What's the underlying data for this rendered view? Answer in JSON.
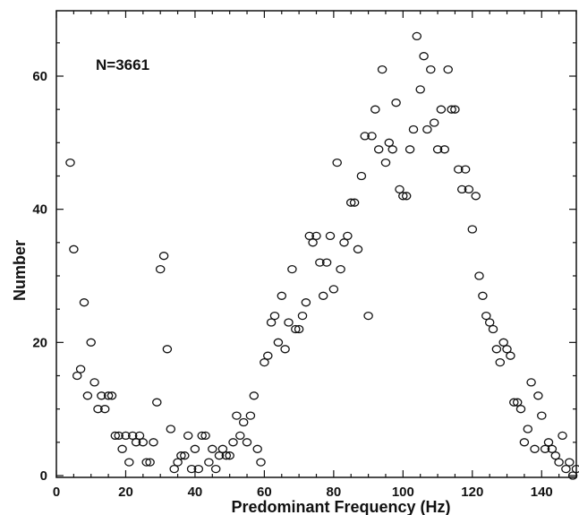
{
  "chart_data": {
    "type": "scatter",
    "title": "",
    "xlabel": "Predominant Frequency (Hz)",
    "ylabel": "Number",
    "annotation": "N=3661",
    "xlim": [
      0,
      150
    ],
    "ylim": [
      0,
      68
    ],
    "x_ticks": [
      "0",
      "20",
      "40",
      "60",
      "80",
      "100",
      "120",
      "140"
    ],
    "y_ticks": [
      "0",
      "20",
      "40",
      "60"
    ],
    "x_tick_values": [
      0,
      20,
      40,
      60,
      80,
      100,
      120,
      140
    ],
    "y_tick_values": [
      0,
      20,
      40,
      60
    ],
    "grid": false,
    "marker": "open-ellipse",
    "points": [
      [
        4,
        47
      ],
      [
        5,
        34
      ],
      [
        6,
        15
      ],
      [
        7,
        16
      ],
      [
        8,
        26
      ],
      [
        9,
        12
      ],
      [
        10,
        20
      ],
      [
        11,
        14
      ],
      [
        12,
        10
      ],
      [
        13,
        12
      ],
      [
        14,
        10
      ],
      [
        15,
        12
      ],
      [
        16,
        12
      ],
      [
        17,
        6
      ],
      [
        18,
        6
      ],
      [
        19,
        4
      ],
      [
        20,
        6
      ],
      [
        21,
        2
      ],
      [
        22,
        6
      ],
      [
        23,
        5
      ],
      [
        24,
        6
      ],
      [
        25,
        5
      ],
      [
        26,
        2
      ],
      [
        27,
        2
      ],
      [
        28,
        5
      ],
      [
        29,
        11
      ],
      [
        30,
        31
      ],
      [
        31,
        33
      ],
      [
        32,
        19
      ],
      [
        33,
        7
      ],
      [
        34,
        1
      ],
      [
        35,
        2
      ],
      [
        36,
        3
      ],
      [
        37,
        3
      ],
      [
        38,
        6
      ],
      [
        39,
        1
      ],
      [
        40,
        4
      ],
      [
        41,
        1
      ],
      [
        42,
        6
      ],
      [
        43,
        6
      ],
      [
        44,
        2
      ],
      [
        45,
        4
      ],
      [
        46,
        1
      ],
      [
        47,
        3
      ],
      [
        48,
        4
      ],
      [
        49,
        3
      ],
      [
        50,
        3
      ],
      [
        51,
        5
      ],
      [
        52,
        9
      ],
      [
        53,
        6
      ],
      [
        54,
        8
      ],
      [
        55,
        5
      ],
      [
        56,
        9
      ],
      [
        57,
        12
      ],
      [
        58,
        4
      ],
      [
        59,
        2
      ],
      [
        60,
        17
      ],
      [
        61,
        18
      ],
      [
        62,
        23
      ],
      [
        63,
        24
      ],
      [
        64,
        20
      ],
      [
        65,
        27
      ],
      [
        66,
        19
      ],
      [
        67,
        23
      ],
      [
        68,
        31
      ],
      [
        69,
        22
      ],
      [
        70,
        22
      ],
      [
        71,
        24
      ],
      [
        72,
        26
      ],
      [
        73,
        36
      ],
      [
        74,
        35
      ],
      [
        75,
        36
      ],
      [
        76,
        32
      ],
      [
        77,
        27
      ],
      [
        78,
        32
      ],
      [
        79,
        36
      ],
      [
        80,
        28
      ],
      [
        81,
        47
      ],
      [
        82,
        31
      ],
      [
        83,
        35
      ],
      [
        84,
        36
      ],
      [
        85,
        41
      ],
      [
        86,
        41
      ],
      [
        87,
        34
      ],
      [
        88,
        45
      ],
      [
        89,
        51
      ],
      [
        90,
        24
      ],
      [
        91,
        51
      ],
      [
        92,
        55
      ],
      [
        93,
        49
      ],
      [
        94,
        61
      ],
      [
        95,
        47
      ],
      [
        96,
        50
      ],
      [
        97,
        49
      ],
      [
        98,
        56
      ],
      [
        99,
        43
      ],
      [
        100,
        42
      ],
      [
        101,
        42
      ],
      [
        102,
        49
      ],
      [
        103,
        52
      ],
      [
        104,
        66
      ],
      [
        105,
        58
      ],
      [
        106,
        63
      ],
      [
        107,
        52
      ],
      [
        108,
        61
      ],
      [
        109,
        53
      ],
      [
        110,
        49
      ],
      [
        111,
        55
      ],
      [
        112,
        49
      ],
      [
        113,
        61
      ],
      [
        114,
        55
      ],
      [
        115,
        55
      ],
      [
        116,
        46
      ],
      [
        117,
        43
      ],
      [
        118,
        46
      ],
      [
        119,
        43
      ],
      [
        120,
        37
      ],
      [
        121,
        42
      ],
      [
        122,
        30
      ],
      [
        123,
        27
      ],
      [
        124,
        24
      ],
      [
        125,
        23
      ],
      [
        126,
        22
      ],
      [
        127,
        19
      ],
      [
        128,
        17
      ],
      [
        129,
        20
      ],
      [
        130,
        19
      ],
      [
        131,
        18
      ],
      [
        132,
        11
      ],
      [
        133,
        11
      ],
      [
        134,
        10
      ],
      [
        135,
        5
      ],
      [
        136,
        7
      ],
      [
        137,
        14
      ],
      [
        138,
        4
      ],
      [
        139,
        12
      ],
      [
        140,
        9
      ],
      [
        141,
        4
      ],
      [
        142,
        5
      ],
      [
        143,
        4
      ],
      [
        144,
        3
      ],
      [
        145,
        2
      ],
      [
        146,
        6
      ],
      [
        147,
        1
      ],
      [
        148,
        2
      ],
      [
        149,
        0
      ],
      [
        150,
        1
      ]
    ]
  }
}
